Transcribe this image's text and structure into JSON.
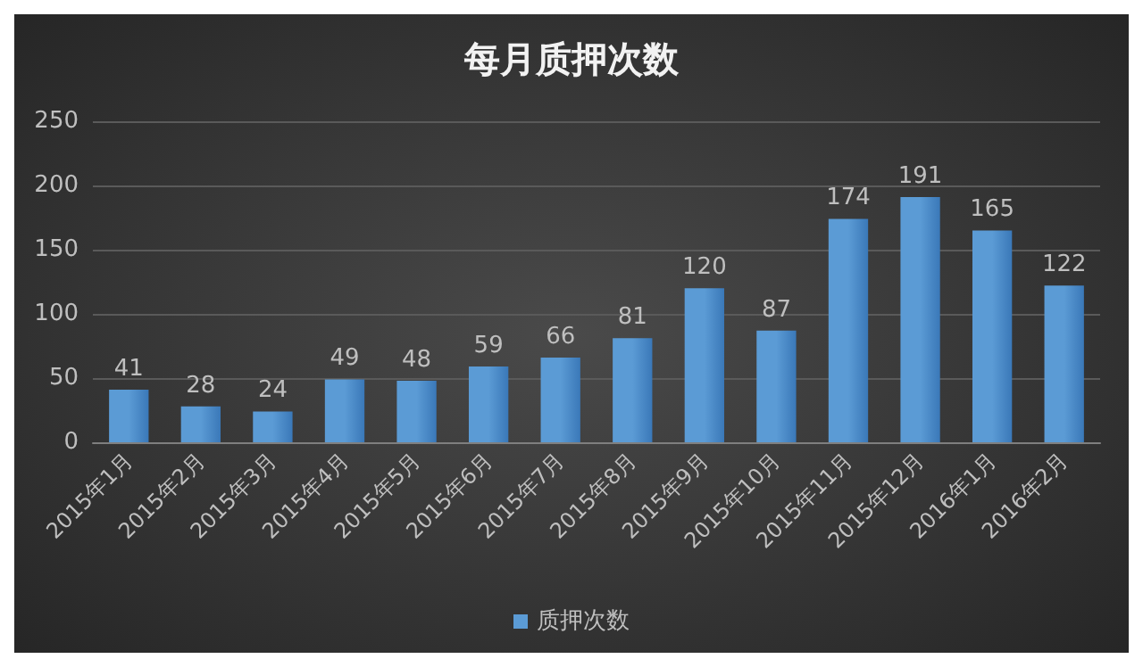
{
  "chart_data": {
    "type": "bar",
    "title": "每月质押次数",
    "categories": [
      "2015年1月",
      "2015年2月",
      "2015年3月",
      "2015年4月",
      "2015年5月",
      "2015年6月",
      "2015年7月",
      "2015年8月",
      "2015年9月",
      "2015年10月",
      "2015年11月",
      "2015年12月",
      "2016年1月",
      "2016年2月"
    ],
    "series": [
      {
        "name": "质押次数",
        "color": "#5b9bd5",
        "values": [
          41,
          28,
          24,
          49,
          48,
          59,
          66,
          81,
          120,
          87,
          174,
          191,
          165,
          122
        ]
      }
    ],
    "ylim": [
      0,
      250
    ],
    "yticks": [
      0,
      50,
      100,
      150,
      200,
      250
    ],
    "grid": "y",
    "legend": "bottom",
    "data_labels": true
  }
}
